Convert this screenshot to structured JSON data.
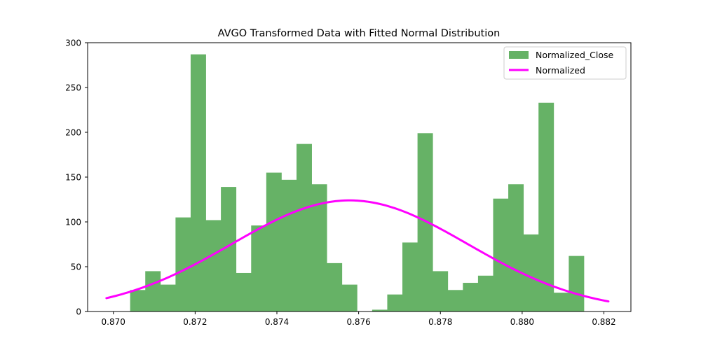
{
  "chart_data": {
    "type": "bar",
    "title": "AVGO Transformed Data with Fitted Normal Distribution",
    "xlabel": "",
    "ylabel": "",
    "xlim": [
      0.86937,
      0.88266
    ],
    "ylim": [
      0,
      300
    ],
    "x_ticks": [
      "0.870",
      "0.872",
      "0.874",
      "0.876",
      "0.878",
      "0.880",
      "0.882"
    ],
    "x_tick_values": [
      0.87,
      0.872,
      0.874,
      0.876,
      0.878,
      0.88,
      0.882
    ],
    "y_ticks": [
      "0",
      "50",
      "100",
      "150",
      "200",
      "250",
      "300"
    ],
    "y_tick_values": [
      0,
      50,
      100,
      150,
      200,
      250,
      300
    ],
    "grid": false,
    "legend_position": "top-right",
    "histogram": {
      "name": "Normalized_Close",
      "color": "#66b266",
      "bin_start": 0.87041,
      "bin_width": 0.00037,
      "counts": [
        24,
        45,
        30,
        105,
        287,
        102,
        139,
        43,
        96,
        155,
        147,
        187,
        142,
        54,
        30,
        0,
        2,
        19,
        77,
        199,
        45,
        24,
        32,
        40,
        126,
        142,
        86,
        233,
        21,
        62
      ]
    },
    "fitted_curve": {
      "name": "Normalized",
      "color": "#ff00ff",
      "mean": 0.87578,
      "std": 0.00289,
      "peak": 124,
      "x_range": [
        0.86983,
        0.88211
      ]
    }
  }
}
